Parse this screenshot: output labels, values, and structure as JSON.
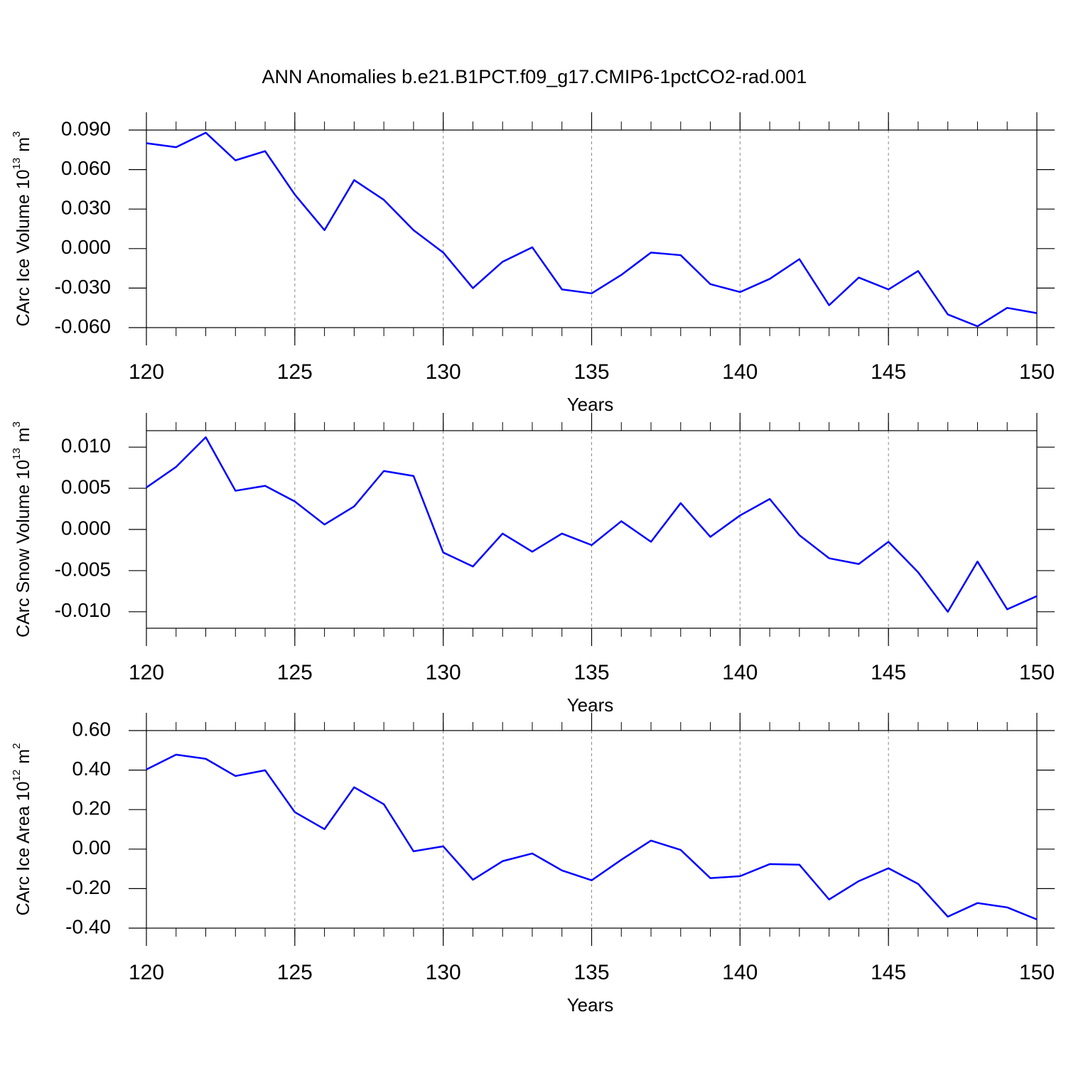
{
  "title": "ANN Anomalies b.e21.B1PCT.f09_g17.CMIP6-1pctCO2-rad.001",
  "chart_data": [
    {
      "type": "line",
      "xlabel": "Years",
      "ylabel": {
        "text": "CArc Ice Volume 10",
        "exponent": "13",
        "unit": "m",
        "unit_exponent": "3"
      },
      "x": [
        120,
        121,
        122,
        123,
        124,
        125,
        126,
        127,
        128,
        129,
        130,
        131,
        132,
        133,
        134,
        135,
        136,
        137,
        138,
        139,
        140,
        141,
        142,
        143,
        144,
        145,
        146,
        147,
        148,
        149,
        150
      ],
      "series": [
        {
          "color": "#0000ff",
          "values": [
            0.08,
            0.077,
            0.088,
            0.067,
            0.074,
            0.041,
            0.014,
            0.052,
            0.037,
            0.014,
            -0.003,
            -0.03,
            -0.01,
            0.001,
            -0.031,
            -0.034,
            -0.02,
            -0.003,
            -0.005,
            -0.027,
            -0.033,
            -0.023,
            -0.008,
            -0.043,
            -0.022,
            -0.031,
            -0.017,
            -0.05,
            -0.059,
            -0.045,
            -0.049
          ]
        }
      ],
      "xlim": [
        120,
        150
      ],
      "xticks": [
        120,
        125,
        130,
        135,
        140,
        145,
        150
      ],
      "ylim": [
        -0.06,
        0.09
      ],
      "yticks": [
        {
          "value": -0.06,
          "label": "-0.060"
        },
        {
          "value": -0.03,
          "label": "-0.030"
        },
        {
          "value": 0,
          "label": "0.000"
        },
        {
          "value": 0.03,
          "label": "0.030"
        },
        {
          "value": 0.06,
          "label": "0.060"
        },
        {
          "value": 0.09,
          "label": "0.090"
        }
      ],
      "grid": "x"
    },
    {
      "type": "line",
      "xlabel": "Years",
      "ylabel": {
        "text": "CArc Snow Volume 10",
        "exponent": "13",
        "unit": "m",
        "unit_exponent": "3"
      },
      "x": [
        120,
        121,
        122,
        123,
        124,
        125,
        126,
        127,
        128,
        129,
        130,
        131,
        132,
        133,
        134,
        135,
        136,
        137,
        138,
        139,
        140,
        141,
        142,
        143,
        144,
        145,
        146,
        147,
        148,
        149,
        150
      ],
      "series": [
        {
          "color": "#0000ff",
          "values": [
            0.0051,
            0.0076,
            0.0112,
            0.0047,
            0.0053,
            0.0034,
            0.0006,
            0.0028,
            0.0071,
            0.0065,
            -0.0028,
            -0.0045,
            -0.0005,
            -0.0027,
            -0.0005,
            -0.0019,
            0.001,
            -0.0015,
            0.0032,
            -0.0009,
            0.0017,
            0.0037,
            -0.0007,
            -0.0035,
            -0.0042,
            -0.0015,
            -0.0052,
            -0.01,
            -0.0039,
            -0.0097,
            -0.0081
          ]
        }
      ],
      "xlim": [
        120,
        150
      ],
      "xticks": [
        120,
        125,
        130,
        135,
        140,
        145,
        150
      ],
      "ylim": [
        -0.012,
        0.012
      ],
      "yticks": [
        {
          "value": -0.01,
          "label": "-0.010"
        },
        {
          "value": -0.005,
          "label": "-0.005"
        },
        {
          "value": 0,
          "label": "0.000"
        },
        {
          "value": 0.005,
          "label": "0.005"
        },
        {
          "value": 0.01,
          "label": "0.010"
        }
      ],
      "grid": "x"
    },
    {
      "type": "line",
      "xlabel": "Years",
      "ylabel": {
        "text": "CArc Ice Area 10",
        "exponent": "12",
        "unit": "m",
        "unit_exponent": "2"
      },
      "x": [
        120,
        121,
        122,
        123,
        124,
        125,
        126,
        127,
        128,
        129,
        130,
        131,
        132,
        133,
        134,
        135,
        136,
        137,
        138,
        139,
        140,
        141,
        142,
        143,
        144,
        145,
        146,
        147,
        148,
        149,
        150
      ],
      "series": [
        {
          "color": "#0000ff",
          "values": [
            0.403,
            0.478,
            0.457,
            0.37,
            0.399,
            0.187,
            0.101,
            0.313,
            0.227,
            -0.011,
            0.014,
            -0.155,
            -0.061,
            -0.022,
            -0.108,
            -0.158,
            -0.054,
            0.043,
            -0.004,
            -0.147,
            -0.137,
            -0.076,
            -0.079,
            -0.255,
            -0.162,
            -0.097,
            -0.176,
            -0.342,
            -0.273,
            -0.295,
            -0.356
          ]
        }
      ],
      "xlim": [
        120,
        150
      ],
      "xticks": [
        120,
        125,
        130,
        135,
        140,
        145,
        150
      ],
      "ylim": [
        -0.4,
        0.6
      ],
      "yticks": [
        {
          "value": -0.4,
          "label": "-0.40"
        },
        {
          "value": -0.2,
          "label": "-0.20"
        },
        {
          "value": 0,
          "label": "0.00"
        },
        {
          "value": 0.2,
          "label": "0.20"
        },
        {
          "value": 0.4,
          "label": "0.40"
        },
        {
          "value": 0.6,
          "label": "0.60"
        }
      ],
      "grid": "x"
    }
  ]
}
